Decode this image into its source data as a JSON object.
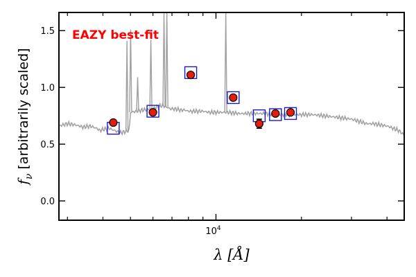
{
  "chart_data": {
    "type": "scatter",
    "title": "",
    "annotation": "EAZY best-fit",
    "annotation_color": "#ff0000",
    "xlabel": "λ [Å]",
    "ylabel_main": "f",
    "ylabel_sub": "ν",
    "ylabel_rest": " [arbitrarily scaled]",
    "x_scale": "log",
    "xlim": [
      2800,
      46000
    ],
    "ylim": [
      -0.17,
      1.66
    ],
    "xticks": [
      {
        "value": 10000,
        "base": "10",
        "exp": "4"
      }
    ],
    "yticks": [
      0.0,
      0.5,
      1.0,
      1.5
    ],
    "ytick_labels": [
      "0.0",
      "0.5",
      "1.0",
      "1.5"
    ],
    "grid": false,
    "legend": "none",
    "colors": {
      "template": "#a0a0a0",
      "model_box": "#1a1acc",
      "point_fill": "#e81c0e",
      "point_edge": "#000000",
      "axes": "#000000"
    },
    "series": [
      {
        "kind": "template",
        "x": [
          2800,
          3000,
          3200,
          3400,
          3600,
          3800,
          3900,
          4000,
          4200,
          4400,
          4600,
          4800,
          4950,
          5000,
          5500,
          6000,
          6200,
          6500,
          6800,
          6900,
          7200,
          7500,
          7800,
          8000,
          8500,
          9000,
          9500,
          10000,
          10500,
          11000,
          12000,
          13000,
          14000,
          15000,
          16000,
          17000,
          18000,
          19000,
          20000,
          22000,
          24000,
          26000,
          28000,
          30000,
          32000,
          34000,
          36000,
          38000,
          40000,
          42000,
          44000,
          46000
        ],
        "y": [
          0.66,
          0.68,
          0.67,
          0.65,
          0.66,
          0.64,
          0.62,
          0.63,
          0.64,
          0.62,
          0.6,
          0.61,
          0.62,
          0.78,
          0.8,
          0.81,
          0.83,
          0.84,
          0.82,
          0.81,
          0.81,
          0.8,
          0.8,
          0.79,
          0.79,
          0.79,
          0.78,
          0.78,
          0.78,
          0.78,
          0.77,
          0.77,
          0.77,
          0.77,
          0.76,
          0.76,
          0.76,
          0.76,
          0.76,
          0.76,
          0.75,
          0.74,
          0.73,
          0.72,
          0.7,
          0.68,
          0.68,
          0.67,
          0.66,
          0.64,
          0.62,
          0.58
        ]
      },
      {
        "kind": "emission_lines",
        "x": [
          4861,
          5007,
          5300,
          5900,
          6563,
          6716,
          10830
        ],
        "peak": [
          1.41,
          1.51,
          1.09,
          1.42,
          1.66,
          1.66,
          1.66
        ]
      },
      {
        "kind": "model_photometry",
        "x": [
          4350,
          6000,
          8150,
          11500,
          14200,
          16200,
          18300
        ],
        "y": [
          0.64,
          0.79,
          1.13,
          0.91,
          0.75,
          0.76,
          0.77
        ]
      },
      {
        "kind": "observed_photometry",
        "x": [
          4350,
          6000,
          8150,
          11500,
          14200,
          16200,
          18300
        ],
        "y": [
          0.69,
          0.78,
          1.11,
          0.91,
          0.68,
          0.77,
          0.78
        ],
        "yerr": [
          0.01,
          0.01,
          0.01,
          0.01,
          0.04,
          0.01,
          0.01
        ]
      }
    ]
  }
}
